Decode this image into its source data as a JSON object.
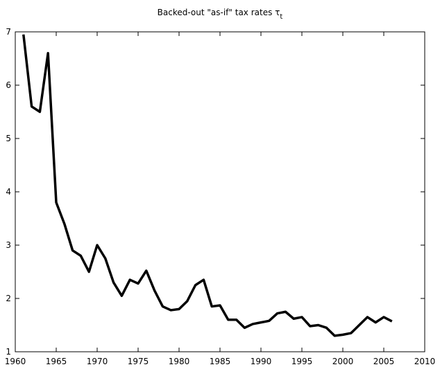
{
  "chart_data": {
    "type": "line",
    "title": "Backed-out \"as-if\" tax rates τ",
    "title_subscript": "t",
    "x": [
      1961,
      1962,
      1963,
      1964,
      1965,
      1966,
      1967,
      1968,
      1969,
      1970,
      1971,
      1972,
      1973,
      1974,
      1975,
      1976,
      1977,
      1978,
      1979,
      1980,
      1981,
      1982,
      1983,
      1984,
      1985,
      1986,
      1987,
      1988,
      1989,
      1990,
      1991,
      1992,
      1993,
      1994,
      1995,
      1996,
      1997,
      1998,
      1999,
      2000,
      2001,
      2002,
      2003,
      2004,
      2005,
      2006
    ],
    "values": [
      6.95,
      5.6,
      5.5,
      6.6,
      3.8,
      3.4,
      2.9,
      2.8,
      2.5,
      3.0,
      2.75,
      2.3,
      2.05,
      2.35,
      2.28,
      2.52,
      2.15,
      1.85,
      1.78,
      1.8,
      1.95,
      2.25,
      2.35,
      1.85,
      1.87,
      1.6,
      1.6,
      1.45,
      1.52,
      1.55,
      1.58,
      1.72,
      1.75,
      1.62,
      1.65,
      1.48,
      1.5,
      1.45,
      1.3,
      1.32,
      1.35,
      1.5,
      1.65,
      1.55,
      1.65,
      1.57
    ],
    "color": "#000000",
    "xlim": [
      1960,
      2010
    ],
    "xticks": [
      1960,
      1965,
      1970,
      1975,
      1980,
      1985,
      1990,
      1995,
      2000,
      2005,
      2010
    ],
    "ylim": [
      1,
      7
    ],
    "yticks": [
      1,
      2,
      3,
      4,
      5,
      6,
      7
    ],
    "grid": false
  }
}
